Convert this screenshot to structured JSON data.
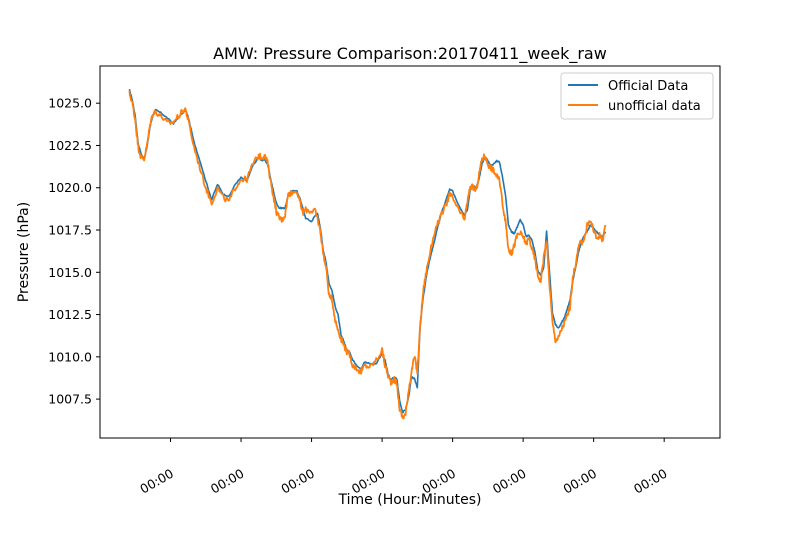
{
  "chart_data": {
    "type": "line",
    "title": "AMW: Pressure Comparison:20170411_week_raw",
    "xlabel": "Time (Hour:Minutes)",
    "ylabel": "Pressure (hPa)",
    "x_tick_labels": [
      "00:00",
      "00:00",
      "00:00",
      "00:00",
      "00:00",
      "00:00",
      "00:00",
      "00:00"
    ],
    "x_tick_hours": [
      24,
      48,
      72,
      96,
      120,
      144,
      168,
      192
    ],
    "xlim_hours": [
      0,
      211
    ],
    "ylim": [
      1005.2,
      1027.2
    ],
    "y_ticks": [
      1007.5,
      1010.0,
      1012.5,
      1015.0,
      1017.5,
      1020.0,
      1022.5,
      1025.0
    ],
    "y_tick_labels": [
      "1007.5",
      "1010.0",
      "1012.5",
      "1015.0",
      "1017.5",
      "1020.0",
      "1022.5",
      "1025.0"
    ],
    "legend_position": "top-right",
    "grid": false,
    "series": [
      {
        "name": "Official Data",
        "color": "#1f77b4",
        "points": [
          [
            10,
            1025.8
          ],
          [
            11,
            1025.2
          ],
          [
            12,
            1024.2
          ],
          [
            13,
            1022.6
          ],
          [
            14,
            1022.0
          ],
          [
            15,
            1021.7
          ],
          [
            16,
            1022.4
          ],
          [
            17,
            1023.6
          ],
          [
            18,
            1024.3
          ],
          [
            19,
            1024.6
          ],
          [
            21,
            1024.4
          ],
          [
            23,
            1024.1
          ],
          [
            25,
            1023.8
          ],
          [
            27,
            1024.2
          ],
          [
            29,
            1024.6
          ],
          [
            30,
            1024.2
          ],
          [
            32,
            1022.7
          ],
          [
            34,
            1021.6
          ],
          [
            36,
            1020.4
          ],
          [
            38,
            1019.3
          ],
          [
            40,
            1020.2
          ],
          [
            42,
            1019.6
          ],
          [
            44,
            1019.5
          ],
          [
            46,
            1020.2
          ],
          [
            48,
            1020.6
          ],
          [
            50,
            1020.4
          ],
          [
            52,
            1021.3
          ],
          [
            54,
            1021.8
          ],
          [
            55,
            1021.6
          ],
          [
            56,
            1021.7
          ],
          [
            57,
            1021.4
          ],
          [
            58,
            1020.6
          ],
          [
            59,
            1019.8
          ],
          [
            60,
            1019.1
          ],
          [
            61,
            1018.8
          ],
          [
            62,
            1018.8
          ],
          [
            63,
            1018.8
          ],
          [
            64,
            1019.5
          ],
          [
            65,
            1019.8
          ],
          [
            67,
            1019.8
          ],
          [
            68,
            1019.4
          ],
          [
            69,
            1018.8
          ],
          [
            70,
            1018.2
          ],
          [
            72,
            1018.0
          ],
          [
            73,
            1018.3
          ],
          [
            74,
            1018.5
          ],
          [
            75,
            1017.6
          ],
          [
            76,
            1016.3
          ],
          [
            77,
            1015.5
          ],
          [
            78,
            1014.3
          ],
          [
            79,
            1013.9
          ],
          [
            80,
            1013.0
          ],
          [
            81,
            1012.5
          ],
          [
            82,
            1011.3
          ],
          [
            83,
            1010.9
          ],
          [
            84,
            1010.4
          ],
          [
            85,
            1010.3
          ],
          [
            86,
            1009.8
          ],
          [
            88,
            1009.4
          ],
          [
            89,
            1009.3
          ],
          [
            90,
            1009.7
          ],
          [
            92,
            1009.6
          ],
          [
            94,
            1009.6
          ],
          [
            96,
            1010.2
          ],
          [
            97,
            1009.8
          ],
          [
            98,
            1009.0
          ],
          [
            99,
            1008.6
          ],
          [
            100,
            1008.8
          ],
          [
            101,
            1008.7
          ],
          [
            102,
            1007.4
          ],
          [
            103,
            1006.7
          ],
          [
            104,
            1006.9
          ],
          [
            105,
            1007.6
          ],
          [
            106,
            1008.8
          ],
          [
            107,
            1008.7
          ],
          [
            108,
            1008.2
          ],
          [
            109,
            1012.0
          ],
          [
            110,
            1013.5
          ],
          [
            111,
            1014.7
          ],
          [
            112,
            1015.6
          ],
          [
            114,
            1017.0
          ],
          [
            116,
            1018.4
          ],
          [
            118,
            1019.4
          ],
          [
            119,
            1019.9
          ],
          [
            120,
            1019.8
          ],
          [
            122,
            1019.0
          ],
          [
            124,
            1018.4
          ],
          [
            125,
            1018.7
          ],
          [
            126,
            1019.9
          ],
          [
            127,
            1020.1
          ],
          [
            128,
            1020.0
          ],
          [
            129,
            1020.5
          ],
          [
            130,
            1021.4
          ],
          [
            131,
            1021.8
          ],
          [
            132,
            1021.6
          ],
          [
            133,
            1021.3
          ],
          [
            134,
            1021.4
          ],
          [
            135,
            1021.6
          ],
          [
            136,
            1021.5
          ],
          [
            137,
            1020.6
          ],
          [
            138,
            1019.6
          ],
          [
            139,
            1017.8
          ],
          [
            140,
            1017.4
          ],
          [
            141,
            1017.3
          ],
          [
            142,
            1017.7
          ],
          [
            143,
            1018.1
          ],
          [
            144,
            1017.8
          ],
          [
            145,
            1017.1
          ],
          [
            146,
            1017.2
          ],
          [
            147,
            1016.9
          ],
          [
            148,
            1016.2
          ],
          [
            149,
            1015.1
          ],
          [
            150,
            1014.8
          ],
          [
            151,
            1015.3
          ],
          [
            152,
            1017.4
          ],
          [
            153,
            1014.9
          ],
          [
            154,
            1012.6
          ],
          [
            155,
            1011.9
          ],
          [
            156,
            1011.7
          ],
          [
            157,
            1012.0
          ],
          [
            158,
            1012.3
          ],
          [
            159,
            1012.8
          ],
          [
            160,
            1013.4
          ],
          [
            161,
            1014.6
          ],
          [
            162,
            1015.4
          ],
          [
            163,
            1016.3
          ],
          [
            164,
            1016.9
          ],
          [
            165,
            1017.2
          ],
          [
            166,
            1017.5
          ],
          [
            167,
            1017.8
          ],
          [
            168,
            1017.6
          ],
          [
            169,
            1017.4
          ],
          [
            170,
            1017.2
          ],
          [
            171,
            1017.1
          ],
          [
            172,
            1017.4
          ]
        ]
      },
      {
        "name": "unofficial data",
        "color": "#ff7f0e",
        "points": [
          [
            10,
            1025.6
          ],
          [
            11,
            1025.0
          ],
          [
            12,
            1024.0
          ],
          [
            13,
            1022.4
          ],
          [
            14,
            1021.8
          ],
          [
            15,
            1021.7
          ],
          [
            16,
            1022.5
          ],
          [
            17,
            1023.7
          ],
          [
            18,
            1024.4
          ],
          [
            19,
            1024.5
          ],
          [
            21,
            1024.2
          ],
          [
            23,
            1023.8
          ],
          [
            25,
            1023.9
          ],
          [
            27,
            1024.3
          ],
          [
            29,
            1024.7
          ],
          [
            30,
            1024.0
          ],
          [
            32,
            1022.4
          ],
          [
            34,
            1021.2
          ],
          [
            36,
            1020.0
          ],
          [
            38,
            1019.1
          ],
          [
            40,
            1020.0
          ],
          [
            42,
            1019.4
          ],
          [
            44,
            1019.2
          ],
          [
            46,
            1020.0
          ],
          [
            48,
            1020.5
          ],
          [
            50,
            1020.5
          ],
          [
            52,
            1021.4
          ],
          [
            54,
            1021.9
          ],
          [
            55,
            1021.8
          ],
          [
            56,
            1021.9
          ],
          [
            57,
            1021.5
          ],
          [
            58,
            1020.5
          ],
          [
            59,
            1019.5
          ],
          [
            60,
            1018.6
          ],
          [
            61,
            1018.2
          ],
          [
            62,
            1018.1
          ],
          [
            63,
            1018.4
          ],
          [
            64,
            1019.6
          ],
          [
            65,
            1019.7
          ],
          [
            67,
            1019.8
          ],
          [
            68,
            1019.2
          ],
          [
            69,
            1018.5
          ],
          [
            70,
            1018.7
          ],
          [
            72,
            1018.6
          ],
          [
            73,
            1018.7
          ],
          [
            74,
            1018.2
          ],
          [
            75,
            1017.4
          ],
          [
            76,
            1016.1
          ],
          [
            77,
            1015.2
          ],
          [
            78,
            1013.6
          ],
          [
            79,
            1013.4
          ],
          [
            80,
            1012.2
          ],
          [
            81,
            1011.6
          ],
          [
            82,
            1011.1
          ],
          [
            83,
            1010.7
          ],
          [
            84,
            1010.3
          ],
          [
            85,
            1010.1
          ],
          [
            86,
            1009.5
          ],
          [
            88,
            1009.2
          ],
          [
            89,
            1009.1
          ],
          [
            90,
            1009.5
          ],
          [
            92,
            1009.4
          ],
          [
            94,
            1009.8
          ],
          [
            96,
            1010.4
          ],
          [
            97,
            1009.5
          ],
          [
            98,
            1008.9
          ],
          [
            99,
            1008.5
          ],
          [
            100,
            1008.7
          ],
          [
            101,
            1008.4
          ],
          [
            102,
            1006.9
          ],
          [
            103,
            1006.4
          ],
          [
            104,
            1006.6
          ],
          [
            105,
            1008.0
          ],
          [
            106,
            1009.1
          ],
          [
            107,
            1010.0
          ],
          [
            108,
            1009.1
          ],
          [
            109,
            1011.9
          ],
          [
            110,
            1013.9
          ],
          [
            111,
            1015.0
          ],
          [
            112,
            1015.9
          ],
          [
            114,
            1017.5
          ],
          [
            116,
            1018.3
          ],
          [
            118,
            1019.1
          ],
          [
            119,
            1019.6
          ],
          [
            120,
            1019.4
          ],
          [
            122,
            1018.7
          ],
          [
            124,
            1018.1
          ],
          [
            125,
            1019.1
          ],
          [
            126,
            1020.1
          ],
          [
            127,
            1020.0
          ],
          [
            128,
            1019.8
          ],
          [
            129,
            1020.8
          ],
          [
            130,
            1021.7
          ],
          [
            131,
            1021.9
          ],
          [
            132,
            1021.4
          ],
          [
            133,
            1021.2
          ],
          [
            134,
            1021.0
          ],
          [
            135,
            1020.7
          ],
          [
            136,
            1020.4
          ],
          [
            137,
            1019.1
          ],
          [
            138,
            1018.0
          ],
          [
            139,
            1016.4
          ],
          [
            140,
            1016.1
          ],
          [
            141,
            1016.6
          ],
          [
            142,
            1017.2
          ],
          [
            143,
            1017.3
          ],
          [
            144,
            1017.1
          ],
          [
            145,
            1016.7
          ],
          [
            146,
            1017.0
          ],
          [
            147,
            1016.4
          ],
          [
            148,
            1015.8
          ],
          [
            149,
            1014.8
          ],
          [
            150,
            1014.5
          ],
          [
            151,
            1015.9
          ],
          [
            152,
            1016.9
          ],
          [
            153,
            1014.2
          ],
          [
            154,
            1012.0
          ],
          [
            155,
            1011.0
          ],
          [
            156,
            1011.1
          ],
          [
            157,
            1011.6
          ],
          [
            158,
            1012.0
          ],
          [
            159,
            1012.4
          ],
          [
            160,
            1013.0
          ],
          [
            161,
            1014.8
          ],
          [
            162,
            1015.6
          ],
          [
            163,
            1016.6
          ],
          [
            164,
            1016.8
          ],
          [
            165,
            1017.1
          ],
          [
            166,
            1017.9
          ],
          [
            167,
            1018.0
          ],
          [
            168,
            1017.5
          ],
          [
            169,
            1017.0
          ],
          [
            170,
            1017.2
          ],
          [
            171,
            1016.9
          ],
          [
            172,
            1017.8
          ]
        ]
      }
    ]
  }
}
